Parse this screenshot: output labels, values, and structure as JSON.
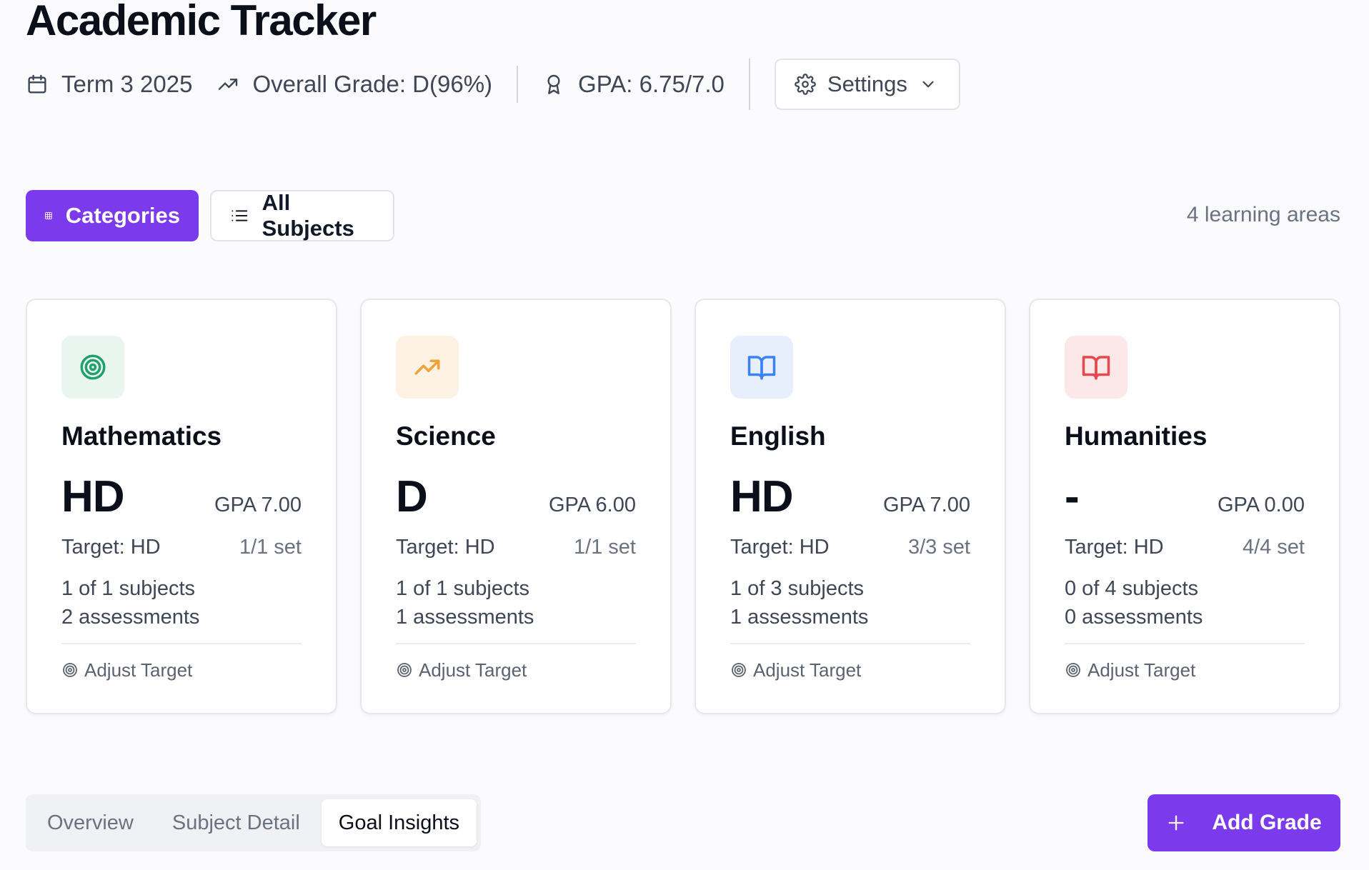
{
  "header": {
    "title": "Academic Tracker",
    "term": "Term 3 2025",
    "overall_grade": "Overall Grade: D(96%)",
    "gpa": "GPA: 6.75/7.0",
    "settings_label": "Settings"
  },
  "view_toggle": {
    "categories_label": "Categories",
    "all_subjects_label": "All Subjects",
    "areas_count": "4 learning areas"
  },
  "categories": [
    {
      "name": "Mathematics",
      "grade": "HD",
      "gpa": "GPA 7.00",
      "target": "Target: HD",
      "set": "1/1 set",
      "subjects": "1 of 1 subjects",
      "assessments": "2 assessments",
      "action": "Adjust Target",
      "icon": "target-icon",
      "icon_color": "#22a06b",
      "icon_bg": "#e8f6ef"
    },
    {
      "name": "Science",
      "grade": "D",
      "gpa": "GPA 6.00",
      "target": "Target: HD",
      "set": "1/1 set",
      "subjects": "1 of 1 subjects",
      "assessments": "1 assessments",
      "action": "Adjust Target",
      "icon": "trending-up-icon",
      "icon_color": "#f0a23a",
      "icon_bg": "#fdf1e3"
    },
    {
      "name": "English",
      "grade": "HD",
      "gpa": "GPA 7.00",
      "target": "Target: HD",
      "set": "3/3 set",
      "subjects": "1 of 3 subjects",
      "assessments": "1 assessments",
      "action": "Adjust Target",
      "icon": "book-open-icon",
      "icon_color": "#3b82f6",
      "icon_bg": "#e8effc"
    },
    {
      "name": "Humanities",
      "grade": "-",
      "gpa": "GPA 0.00",
      "target": "Target: HD",
      "set": "4/4 set",
      "subjects": "0 of 4 subjects",
      "assessments": "0 assessments",
      "action": "Adjust Target",
      "icon": "book-open-icon",
      "icon_color": "#e5484d",
      "icon_bg": "#fce8e8"
    }
  ],
  "tabs": [
    {
      "label": "Overview",
      "active": false
    },
    {
      "label": "Subject Detail",
      "active": false
    },
    {
      "label": "Goal Insights",
      "active": true
    }
  ],
  "add_grade_label": "Add Grade",
  "colors": {
    "accent": "#7c3aed"
  }
}
